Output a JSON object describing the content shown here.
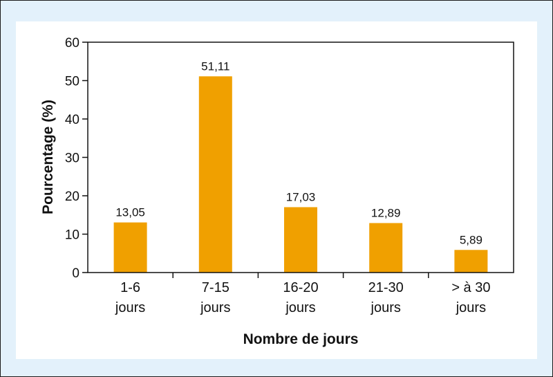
{
  "colors": {
    "bar": "#f0a000",
    "frame_bg": "#e3f1fb",
    "axis": "#111111"
  },
  "chart_data": {
    "type": "bar",
    "categories": [
      [
        "1-6",
        "jours"
      ],
      [
        "7-15",
        "jours"
      ],
      [
        "16-20",
        "jours"
      ],
      [
        "21-30",
        "jours"
      ],
      [
        "> à 30",
        "jours"
      ]
    ],
    "values": [
      13.05,
      51.11,
      17.03,
      12.89,
      5.89
    ],
    "value_labels": [
      "13,05",
      "51,11",
      "17,03",
      "12,89",
      "5,89"
    ],
    "xlabel": "Nombre de jours",
    "ylabel": "Pourcentage (%)",
    "ylim": [
      0,
      60
    ],
    "yticks": [
      0,
      10,
      20,
      30,
      40,
      50,
      60
    ],
    "grid": false,
    "legend": "none"
  }
}
